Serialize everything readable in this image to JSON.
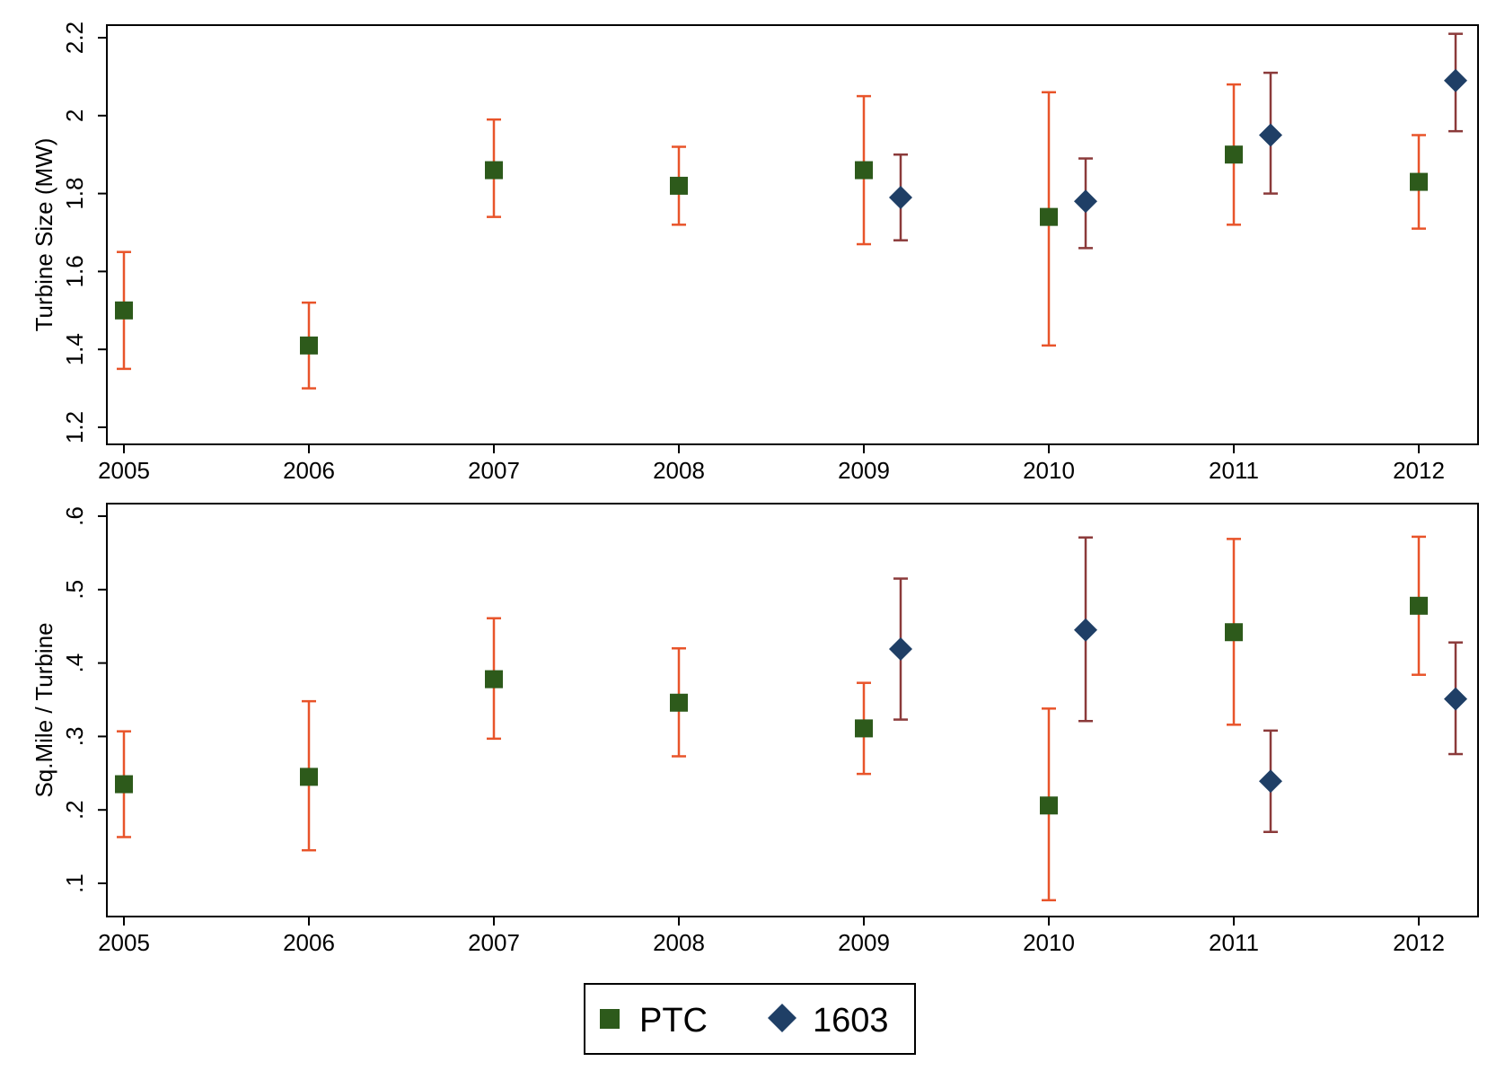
{
  "chart_data": [
    {
      "type": "scatter",
      "panel": "top",
      "ylabel": "Turbine Size (MW)",
      "xlabel": "",
      "ylim": [
        1.2,
        2.2
      ],
      "yticks": [
        "1.2",
        "1.4",
        "1.6",
        "1.8",
        "2",
        "2.2"
      ],
      "ytick_values": [
        1.2,
        1.4,
        1.6,
        1.8,
        2.0,
        2.2
      ],
      "xticks": [
        "2005",
        "2006",
        "2007",
        "2008",
        "2009",
        "2010",
        "2011",
        "2012"
      ],
      "grid": false,
      "series": [
        {
          "name": "PTC",
          "marker": "square",
          "color": "#2d5a1b",
          "errorbar_color": "#e8542a",
          "x": [
            2005,
            2006,
            2007,
            2008,
            2009,
            2010,
            2011,
            2012
          ],
          "y": [
            1.5,
            1.41,
            1.86,
            1.82,
            1.86,
            1.74,
            1.9,
            1.83
          ],
          "lower": [
            1.35,
            1.3,
            1.74,
            1.72,
            1.67,
            1.41,
            1.72,
            1.71
          ],
          "upper": [
            1.65,
            1.52,
            1.99,
            1.92,
            2.05,
            2.06,
            2.08,
            1.95
          ]
        },
        {
          "name": "1603",
          "marker": "diamond",
          "color": "#1f3f66",
          "errorbar_color": "#8b3a3a",
          "x": [
            2009,
            2010,
            2011,
            2012
          ],
          "y": [
            1.79,
            1.78,
            1.95,
            2.09
          ],
          "lower": [
            1.68,
            1.66,
            1.8,
            1.96
          ],
          "upper": [
            1.9,
            1.89,
            2.11,
            2.21
          ]
        }
      ]
    },
    {
      "type": "scatter",
      "panel": "bottom",
      "ylabel": "Sq.Mile / Turbine",
      "xlabel": "",
      "ylim": [
        0.05,
        0.62
      ],
      "yticks": [
        ".1",
        ".2",
        ".3",
        ".4",
        ".5",
        ".6"
      ],
      "ytick_values": [
        0.1,
        0.2,
        0.3,
        0.4,
        0.5,
        0.6
      ],
      "xticks": [
        "2005",
        "2006",
        "2007",
        "2008",
        "2009",
        "2010",
        "2011",
        "2012"
      ],
      "grid": false,
      "series": [
        {
          "name": "PTC",
          "marker": "square",
          "color": "#2d5a1b",
          "errorbar_color": "#e8542a",
          "x": [
            2005,
            2006,
            2007,
            2008,
            2009,
            2010,
            2011,
            2012
          ],
          "y": [
            0.235,
            0.245,
            0.378,
            0.346,
            0.311,
            0.206,
            0.442,
            0.478
          ],
          "lower": [
            0.163,
            0.145,
            0.297,
            0.273,
            0.249,
            0.077,
            0.316,
            0.384
          ],
          "upper": [
            0.307,
            0.348,
            0.461,
            0.42,
            0.373,
            0.338,
            0.569,
            0.572
          ]
        },
        {
          "name": "1603",
          "marker": "diamond",
          "color": "#1f3f66",
          "errorbar_color": "#8b3a3a",
          "x": [
            2009,
            2010,
            2011,
            2012
          ],
          "y": [
            0.419,
            0.445,
            0.239,
            0.351
          ],
          "lower": [
            0.323,
            0.321,
            0.17,
            0.276
          ],
          "upper": [
            0.515,
            0.571,
            0.308,
            0.428
          ]
        }
      ]
    }
  ],
  "legend": {
    "placement": "bottom-center",
    "items": [
      {
        "label": "PTC",
        "marker": "square",
        "color": "#2d5a1b"
      },
      {
        "label": "1603",
        "marker": "diamond",
        "color": "#1f3f66"
      }
    ]
  }
}
